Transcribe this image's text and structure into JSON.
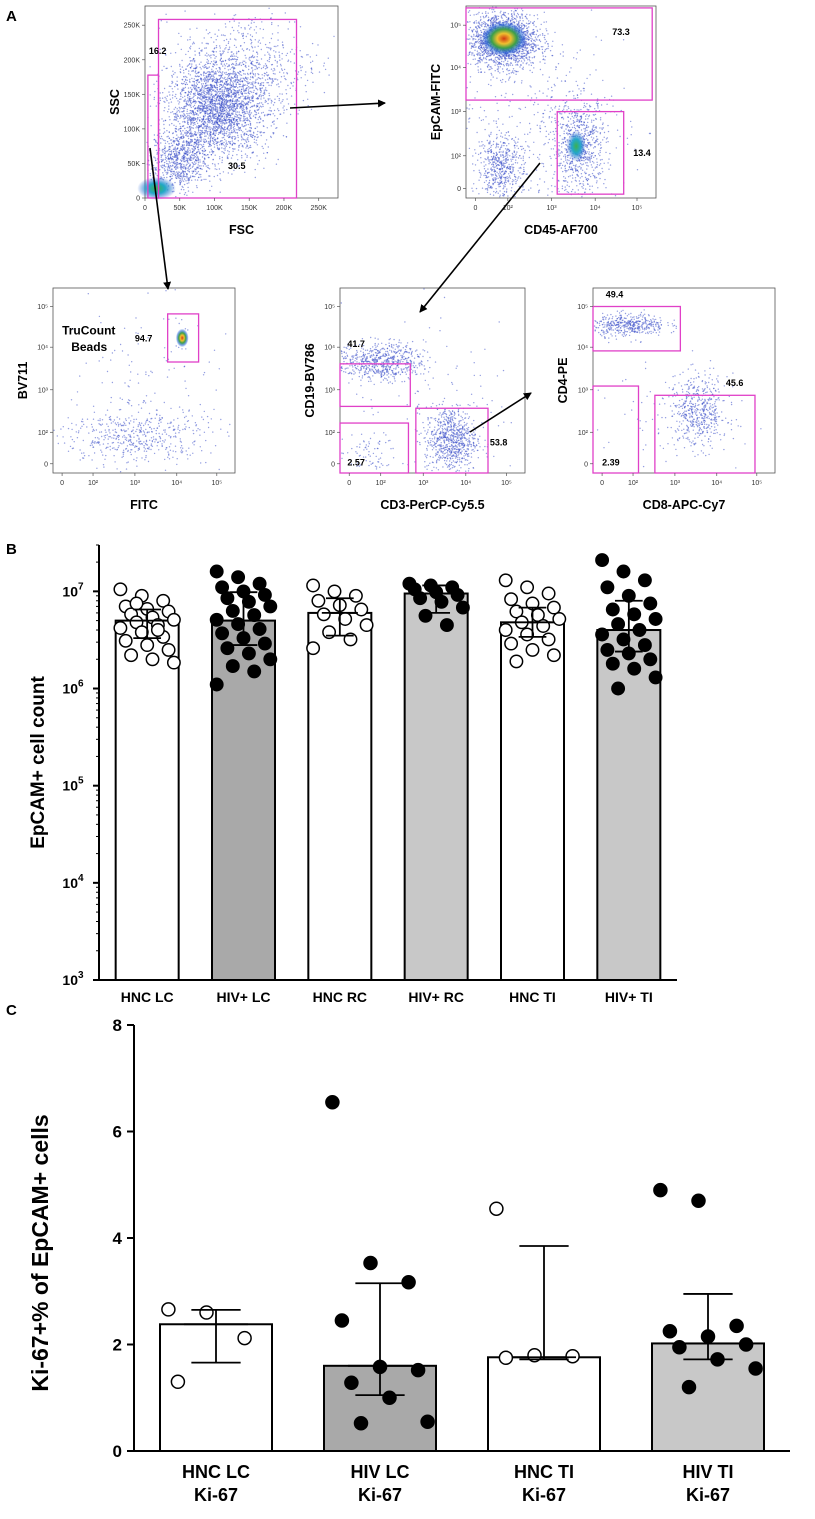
{
  "panel_labels": {
    "a": "A",
    "b": "B",
    "c": "C"
  },
  "colors": {
    "gate": "#e040c8",
    "events": "#3a4fc8",
    "bar_white": "#ffffff",
    "bar_dark": "#a9a9a9",
    "bar_light": "#c8c8c8",
    "axis": "#000000"
  },
  "chart_data": [
    {
      "type": "scatter",
      "id": "fsc-ssc",
      "xlabel": "FSC",
      "ylabel": "SSC",
      "x_ticks": [
        "0",
        "50K",
        "100K",
        "150K",
        "200K",
        "250K"
      ],
      "y_ticks": [
        "0",
        "50K",
        "100K",
        "150K",
        "200K",
        "250K"
      ],
      "gates": [
        {
          "label": "16.2"
        },
        {
          "label": "30.5"
        }
      ]
    },
    {
      "type": "scatter",
      "id": "cd45-epcam",
      "xlabel": "CD45-AF700",
      "ylabel": "EpCAM-FITC",
      "x_ticks": [
        "0",
        "10²",
        "10³",
        "10⁴",
        "10⁵"
      ],
      "y_ticks": [
        "0",
        "10²",
        "10³",
        "10⁴",
        "10⁵"
      ],
      "gates": [
        {
          "label": "73.3"
        },
        {
          "label": "13.4"
        }
      ]
    },
    {
      "type": "scatter",
      "id": "fitc-bv711",
      "xlabel": "FITC",
      "ylabel": "BV711",
      "annotation": "TruCount Beads",
      "x_ticks": [
        "0",
        "10²",
        "10³",
        "10⁴",
        "10⁵"
      ],
      "y_ticks": [
        "0",
        "10²",
        "10³",
        "10⁴",
        "10⁵"
      ],
      "gates": [
        {
          "label": "94.7"
        }
      ]
    },
    {
      "type": "scatter",
      "id": "cd3-cd19",
      "xlabel": "CD3-PerCP-Cy5.5",
      "ylabel": "CD19-BV786",
      "x_ticks": [
        "0",
        "10²",
        "10³",
        "10⁴",
        "10⁵"
      ],
      "y_ticks": [
        "0",
        "10²",
        "10³",
        "10⁴",
        "10⁵"
      ],
      "gates": [
        {
          "label": "41.7"
        },
        {
          "label": "2.57"
        },
        {
          "label": "53.8"
        }
      ]
    },
    {
      "type": "scatter",
      "id": "cd8-cd4",
      "xlabel": "CD8-APC-Cy7",
      "ylabel": "CD4-PE",
      "x_ticks": [
        "0",
        "10²",
        "10³",
        "10⁴",
        "10⁵"
      ],
      "y_ticks": [
        "0",
        "10²",
        "10³",
        "10⁴",
        "10⁵"
      ],
      "gates": [
        {
          "label": "49.4"
        },
        {
          "label": "2.39"
        },
        {
          "label": "45.6"
        }
      ]
    },
    {
      "type": "bar",
      "id": "epcam-count",
      "ylabel": "EpCAM+ cell count",
      "yscale": "log",
      "ylim": [
        1000,
        30000000
      ],
      "y_ticks": [
        {
          "base": "10",
          "exp": "3"
        },
        {
          "base": "10",
          "exp": "4"
        },
        {
          "base": "10",
          "exp": "5"
        },
        {
          "base": "10",
          "exp": "6"
        },
        {
          "base": "10",
          "exp": "7"
        }
      ],
      "categories": [
        "HNC LC",
        "HIV+ LC",
        "HNC RC",
        "HIV+ RC",
        "HNC TI",
        "HIV+ TI"
      ],
      "values": [
        5000000,
        5000000,
        6000000,
        9500000,
        4800000,
        4000000
      ],
      "error_low": [
        3300000,
        2800000,
        3500000,
        6000000,
        3400000,
        2400000
      ],
      "error_high": [
        6500000,
        9800000,
        8500000,
        11500000,
        6800000,
        8000000
      ],
      "fill": [
        "white",
        "dark",
        "white",
        "light",
        "white",
        "light"
      ],
      "marker": [
        "open",
        "filled",
        "open",
        "filled",
        "open",
        "filled"
      ],
      "points": [
        [
          10500000,
          9000000,
          8000000,
          7000000,
          6600000,
          6200000,
          5800000,
          5400000,
          5100000,
          4800000,
          4500000,
          4200000,
          3800000,
          3400000,
          3100000,
          2800000,
          2500000,
          2200000,
          2000000,
          1850000,
          7500000,
          4000000
        ],
        [
          16000000,
          14000000,
          12000000,
          11000000,
          10000000,
          9200000,
          8500000,
          7800000,
          7000000,
          6300000,
          5700000,
          5100000,
          4600000,
          4100000,
          3700000,
          3300000,
          2900000,
          2600000,
          2300000,
          2000000,
          1700000,
          1500000,
          1100000
        ],
        [
          11500000,
          10000000,
          9000000,
          8000000,
          7200000,
          6500000,
          5800000,
          5200000,
          4500000,
          3800000,
          3200000,
          2600000
        ],
        [
          12000000,
          11500000,
          11000000,
          10500000,
          9800000,
          9200000,
          8500000,
          7800000,
          6800000,
          5600000,
          4500000
        ],
        [
          13000000,
          11000000,
          9500000,
          8300000,
          7500000,
          6800000,
          6200000,
          5700000,
          5200000,
          4800000,
          4400000,
          4000000,
          3600000,
          3200000,
          2900000,
          2500000,
          2200000,
          1900000
        ],
        [
          21000000,
          16000000,
          13000000,
          11000000,
          9000000,
          7500000,
          6500000,
          5800000,
          5200000,
          4600000,
          4000000,
          3600000,
          3200000,
          2800000,
          2500000,
          2300000,
          2000000,
          1800000,
          1600000,
          1300000,
          1000000
        ]
      ]
    },
    {
      "type": "bar",
      "id": "ki67",
      "ylabel": "Ki-67+% of EpCAM+ cells",
      "ylim": [
        0,
        8
      ],
      "y_ticks": [
        "0",
        "2",
        "4",
        "6",
        "8"
      ],
      "categories": [
        {
          "line1": "HNC LC",
          "line2": "Ki-67"
        },
        {
          "line1": "HIV LC",
          "line2": "Ki-67"
        },
        {
          "line1": "HNC TI",
          "line2": "Ki-67"
        },
        {
          "line1": "HIV TI",
          "line2": "Ki-67"
        }
      ],
      "values": [
        2.38,
        1.6,
        1.76,
        2.02
      ],
      "error_low": [
        1.66,
        1.05,
        1.72,
        1.72
      ],
      "error_high": [
        2.65,
        3.15,
        3.85,
        2.95
      ],
      "fill": [
        "white",
        "dark",
        "white",
        "light"
      ],
      "marker": [
        "open",
        "filled",
        "open",
        "filled"
      ],
      "points": [
        [
          2.66,
          2.6,
          2.12,
          1.3
        ],
        [
          6.55,
          3.53,
          3.17,
          2.45,
          1.58,
          1.52,
          1.28,
          1.0,
          0.55,
          0.52
        ],
        [
          4.55,
          1.8,
          1.78,
          1.75
        ],
        [
          4.9,
          4.7,
          2.35,
          2.25,
          2.15,
          2.0,
          1.95,
          1.72,
          1.55,
          1.2
        ]
      ]
    }
  ]
}
